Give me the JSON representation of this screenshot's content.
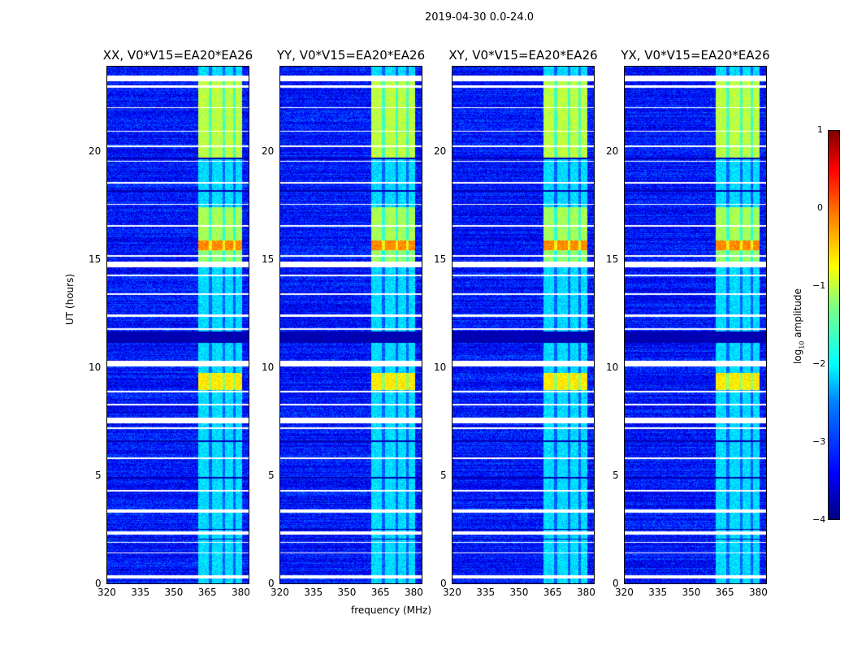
{
  "chart_data": {
    "type": "heatmap",
    "title": "2019-04-30 0.0-24.0",
    "xlabel": "frequency (MHz)",
    "ylabel": "UT (hours)",
    "xlim": [
      320,
      384
    ],
    "ylim": [
      0,
      24
    ],
    "xticks": [
      320,
      335,
      350,
      365,
      380
    ],
    "yticks": [
      0,
      5,
      10,
      15,
      20
    ],
    "panels": [
      {
        "title": "XX, V0*V15=EA20*EA26"
      },
      {
        "title": "YY, V0*V15=EA20*EA26"
      },
      {
        "title": "XY, V0*V15=EA20*EA26"
      },
      {
        "title": "YX, V0*V15=EA20*EA26"
      }
    ],
    "colorbar": {
      "label": "log10 amplitude",
      "label_main": "log",
      "label_sub": "10",
      "label_tail": " amplitude",
      "range": [
        -4,
        1
      ],
      "ticks": [
        "1",
        "0",
        "−1",
        "−2",
        "−3",
        "−4"
      ],
      "colormap": "jet"
    },
    "background_level": -3.3,
    "rfi_band_mhz": [
      361,
      381
    ],
    "rfi_levels": [
      {
        "ut": [
          19.8,
          23.4
        ],
        "level": -1.2
      },
      {
        "ut": [
          15.95,
          17.5
        ],
        "level": -1.3
      },
      {
        "ut": [
          15.5,
          15.95
        ],
        "level": -0.3
      },
      {
        "ut": [
          14.8,
          15.5
        ],
        "level": -1.4
      },
      {
        "ut": [
          9.0,
          9.8
        ],
        "level": -0.8
      },
      {
        "ut": [
          7.5,
          7.7
        ],
        "level": -0.8
      }
    ],
    "flagged_ut": [
      [
        23.35,
        23.6
      ],
      [
        23.05,
        23.15
      ],
      [
        22.1,
        22.15
      ],
      [
        21.0,
        21.05
      ],
      [
        20.3,
        20.35
      ],
      [
        19.6,
        19.65
      ],
      [
        18.6,
        18.65
      ],
      [
        17.6,
        17.65
      ],
      [
        16.6,
        16.65
      ],
      [
        15.2,
        15.25
      ],
      [
        14.7,
        14.95
      ],
      [
        14.3,
        14.35
      ],
      [
        13.4,
        13.5
      ],
      [
        12.4,
        12.5
      ],
      [
        11.8,
        11.85
      ],
      [
        10.1,
        10.35
      ],
      [
        8.9,
        8.95
      ],
      [
        8.3,
        8.35
      ],
      [
        7.45,
        7.7
      ],
      [
        7.2,
        7.25
      ],
      [
        5.8,
        5.85
      ],
      [
        4.3,
        4.35
      ],
      [
        3.3,
        3.45
      ],
      [
        2.3,
        2.45
      ],
      [
        1.9,
        1.95
      ],
      [
        1.4,
        1.45
      ],
      [
        0.25,
        0.4
      ]
    ],
    "dark_ut": [
      [
        11.2,
        11.7
      ],
      [
        19.7,
        19.8
      ],
      [
        4.9,
        4.95
      ],
      [
        2.5,
        2.55
      ],
      [
        2.05,
        2.1
      ],
      [
        6.6,
        6.65
      ],
      [
        18.2,
        18.3
      ]
    ]
  }
}
